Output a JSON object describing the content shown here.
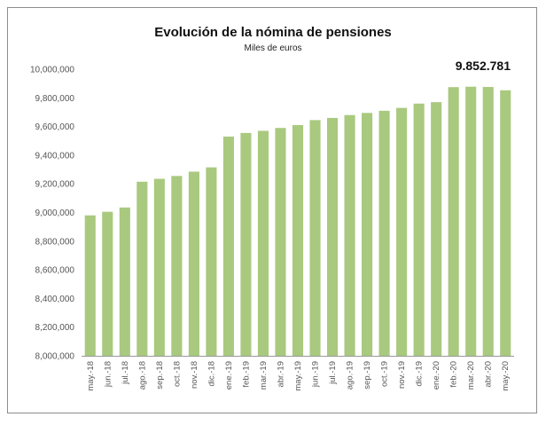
{
  "chart_data": {
    "type": "bar",
    "title": "Evolución de la nómina de pensiones",
    "subtitle": "Miles de euros",
    "annotation": "9.852.781",
    "bar_color": "#a9c97f",
    "ylim": [
      8000000,
      10000000
    ],
    "yticks": [
      "8,000,000",
      "8,200,000",
      "8,400,000",
      "8,600,000",
      "8,800,000",
      "9,000,000",
      "9,200,000",
      "9,400,000",
      "9,600,000",
      "9,800,000",
      "10,000,000"
    ],
    "ytick_values": [
      8000000,
      8200000,
      8400000,
      8600000,
      8800000,
      9000000,
      9200000,
      9400000,
      9600000,
      9800000,
      10000000
    ],
    "grid": false,
    "categories": [
      "may.-18",
      "jun.-18",
      "jul.-18",
      "ago.-18",
      "sep.-18",
      "oct.-18",
      "nov.-18",
      "dic.-18",
      "ene.-19",
      "feb.-19",
      "mar.-19",
      "abr.-19",
      "may.-19",
      "jun.-19",
      "jul.-19",
      "ago.-19",
      "sep.-19",
      "oct.-19",
      "nov.-19",
      "dic.-19",
      "ene.-20",
      "feb.-20",
      "mar.-20",
      "abr.-20",
      "may.-20"
    ],
    "values": [
      8980000,
      9005000,
      9035000,
      9215000,
      9235000,
      9255000,
      9285000,
      9315000,
      9530000,
      9555000,
      9570000,
      9590000,
      9610000,
      9645000,
      9660000,
      9680000,
      9695000,
      9710000,
      9730000,
      9760000,
      9770000,
      9875000,
      9878000,
      9876000,
      9852781
    ]
  }
}
